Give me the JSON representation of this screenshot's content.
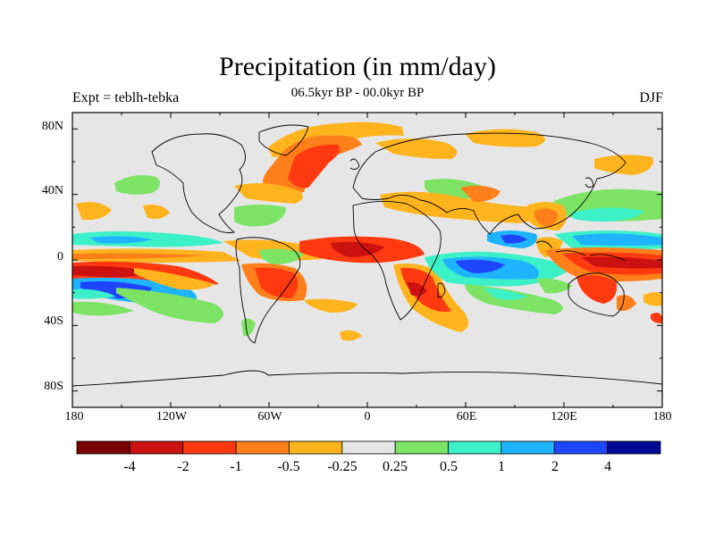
{
  "title": "Precipitation (in mm/day)",
  "subtitle": "06.5kyr BP - 00.0kyr BP",
  "left_label": "Expt = teblh-tebka",
  "right_label": "DJF",
  "lat_ticks": [
    "80N",
    "40N",
    "0",
    "40S",
    "80S"
  ],
  "lon_ticks": [
    "180",
    "120W",
    "60W",
    "0",
    "60E",
    "120E",
    "180"
  ],
  "colorbar": {
    "colors": [
      "#7a0000",
      "#cc1111",
      "#ff3a10",
      "#ff7f1a",
      "#ffb41e",
      "#e6e6e6",
      "#7ce364",
      "#3cf0c8",
      "#1eb4ff",
      "#1e46ff",
      "#000a96"
    ],
    "labels": [
      "-4",
      "-2",
      "-1",
      "-0.5",
      "-0.25",
      "0.25",
      "0.5",
      "1",
      "2",
      "4"
    ]
  },
  "colors": {
    "ocean_land_bg": "#e6e6e6",
    "coast": "#000000"
  }
}
